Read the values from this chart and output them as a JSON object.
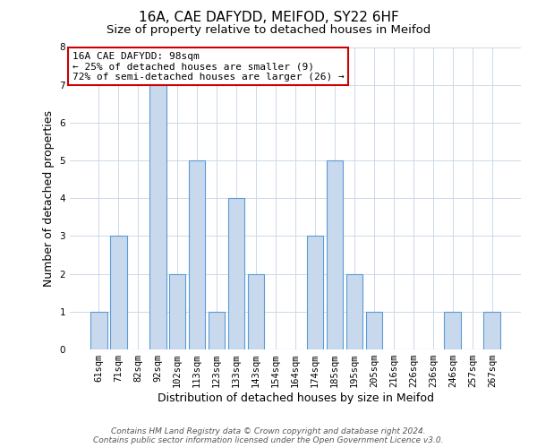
{
  "title": "16A, CAE DAFYDD, MEIFOD, SY22 6HF",
  "subtitle": "Size of property relative to detached houses in Meifod",
  "xlabel": "Distribution of detached houses by size in Meifod",
  "ylabel": "Number of detached properties",
  "categories": [
    "61sqm",
    "71sqm",
    "82sqm",
    "92sqm",
    "102sqm",
    "113sqm",
    "123sqm",
    "133sqm",
    "143sqm",
    "154sqm",
    "164sqm",
    "174sqm",
    "185sqm",
    "195sqm",
    "205sqm",
    "216sqm",
    "226sqm",
    "236sqm",
    "246sqm",
    "257sqm",
    "267sqm"
  ],
  "values": [
    1,
    3,
    0,
    7,
    2,
    5,
    1,
    4,
    2,
    0,
    0,
    3,
    5,
    2,
    1,
    0,
    0,
    0,
    1,
    0,
    1
  ],
  "bar_color": "#c8d9ed",
  "bar_edge_color": "#5b9bd5",
  "ylim": [
    0,
    8
  ],
  "yticks": [
    0,
    1,
    2,
    3,
    4,
    5,
    6,
    7,
    8
  ],
  "annotation_title": "16A CAE DAFYDD: 98sqm",
  "annotation_line1": "← 25% of detached houses are smaller (9)",
  "annotation_line2": "72% of semi-detached houses are larger (26) →",
  "annotation_box_color": "#ffffff",
  "annotation_box_edge_color": "#cc0000",
  "footer_line1": "Contains HM Land Registry data © Crown copyright and database right 2024.",
  "footer_line2": "Contains public sector information licensed under the Open Government Licence v3.0.",
  "bg_color": "#ffffff",
  "grid_color": "#ccd9e8",
  "title_fontsize": 11,
  "subtitle_fontsize": 9.5,
  "axis_label_fontsize": 9,
  "tick_fontsize": 7.5,
  "footer_fontsize": 6.5,
  "ann_fontsize": 8
}
